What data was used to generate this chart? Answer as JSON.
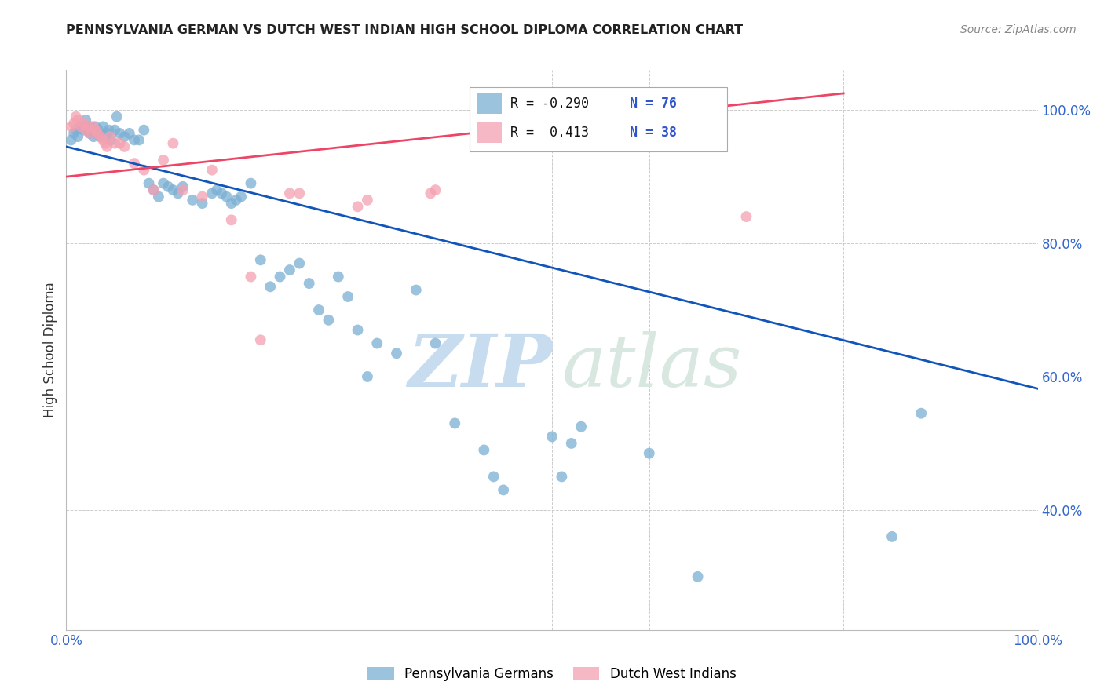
{
  "title": "PENNSYLVANIA GERMAN VS DUTCH WEST INDIAN HIGH SCHOOL DIPLOMA CORRELATION CHART",
  "source": "Source: ZipAtlas.com",
  "ylabel": "High School Diploma",
  "xlim": [
    0.0,
    1.0
  ],
  "ylim": [
    0.22,
    1.06
  ],
  "ytick_labels": [
    "100.0%",
    "80.0%",
    "60.0%",
    "40.0%"
  ],
  "ytick_positions": [
    1.0,
    0.8,
    0.6,
    0.4
  ],
  "blue_color": "#7BAFD4",
  "pink_color": "#F4A0B0",
  "line_blue": "#1155BB",
  "line_pink": "#EE4466",
  "r_blue": "-0.290",
  "n_blue": "76",
  "r_pink": " 0.413",
  "n_pink": "38",
  "blue_line_x": [
    0.0,
    1.0
  ],
  "blue_line_y": [
    0.945,
    0.582
  ],
  "pink_line_x": [
    0.0,
    0.8
  ],
  "pink_line_y": [
    0.9,
    1.025
  ],
  "blue_points_x": [
    0.005,
    0.008,
    0.01,
    0.012,
    0.015,
    0.018,
    0.02,
    0.02,
    0.022,
    0.024,
    0.025,
    0.026,
    0.028,
    0.03,
    0.031,
    0.033,
    0.035,
    0.038,
    0.04,
    0.042,
    0.044,
    0.046,
    0.05,
    0.052,
    0.055,
    0.06,
    0.065,
    0.07,
    0.075,
    0.08,
    0.085,
    0.09,
    0.095,
    0.1,
    0.105,
    0.11,
    0.115,
    0.12,
    0.13,
    0.14,
    0.15,
    0.155,
    0.16,
    0.165,
    0.17,
    0.175,
    0.18,
    0.19,
    0.2,
    0.21,
    0.22,
    0.23,
    0.24,
    0.25,
    0.26,
    0.27,
    0.28,
    0.29,
    0.3,
    0.31,
    0.32,
    0.34,
    0.36,
    0.38,
    0.4,
    0.43,
    0.44,
    0.45,
    0.5,
    0.51,
    0.52,
    0.53,
    0.6,
    0.65,
    0.85,
    0.88
  ],
  "blue_points_y": [
    0.955,
    0.965,
    0.97,
    0.96,
    0.975,
    0.97,
    0.975,
    0.985,
    0.97,
    0.965,
    0.975,
    0.97,
    0.96,
    0.975,
    0.965,
    0.97,
    0.96,
    0.975,
    0.96,
    0.965,
    0.97,
    0.955,
    0.97,
    0.99,
    0.965,
    0.96,
    0.965,
    0.955,
    0.955,
    0.97,
    0.89,
    0.88,
    0.87,
    0.89,
    0.885,
    0.88,
    0.875,
    0.885,
    0.865,
    0.86,
    0.875,
    0.88,
    0.875,
    0.87,
    0.86,
    0.865,
    0.87,
    0.89,
    0.775,
    0.735,
    0.75,
    0.76,
    0.77,
    0.74,
    0.7,
    0.685,
    0.75,
    0.72,
    0.67,
    0.6,
    0.65,
    0.635,
    0.73,
    0.65,
    0.53,
    0.49,
    0.45,
    0.43,
    0.51,
    0.45,
    0.5,
    0.525,
    0.485,
    0.3,
    0.36,
    0.545
  ],
  "pink_points_x": [
    0.005,
    0.008,
    0.01,
    0.012,
    0.015,
    0.018,
    0.02,
    0.022,
    0.025,
    0.028,
    0.03,
    0.032,
    0.035,
    0.038,
    0.04,
    0.042,
    0.045,
    0.05,
    0.055,
    0.06,
    0.07,
    0.08,
    0.09,
    0.1,
    0.11,
    0.12,
    0.14,
    0.15,
    0.17,
    0.19,
    0.2,
    0.23,
    0.24,
    0.3,
    0.31,
    0.375,
    0.38,
    0.7
  ],
  "pink_points_y": [
    0.975,
    0.98,
    0.99,
    0.985,
    0.975,
    0.98,
    0.97,
    0.975,
    0.965,
    0.975,
    0.97,
    0.965,
    0.96,
    0.955,
    0.95,
    0.945,
    0.96,
    0.95,
    0.95,
    0.945,
    0.92,
    0.91,
    0.88,
    0.925,
    0.95,
    0.88,
    0.87,
    0.91,
    0.835,
    0.75,
    0.655,
    0.875,
    0.875,
    0.855,
    0.865,
    0.875,
    0.88,
    0.84
  ],
  "watermark_zip": "ZIP",
  "watermark_atlas": "atlas",
  "background_color": "#ffffff",
  "grid_color": "#cccccc"
}
